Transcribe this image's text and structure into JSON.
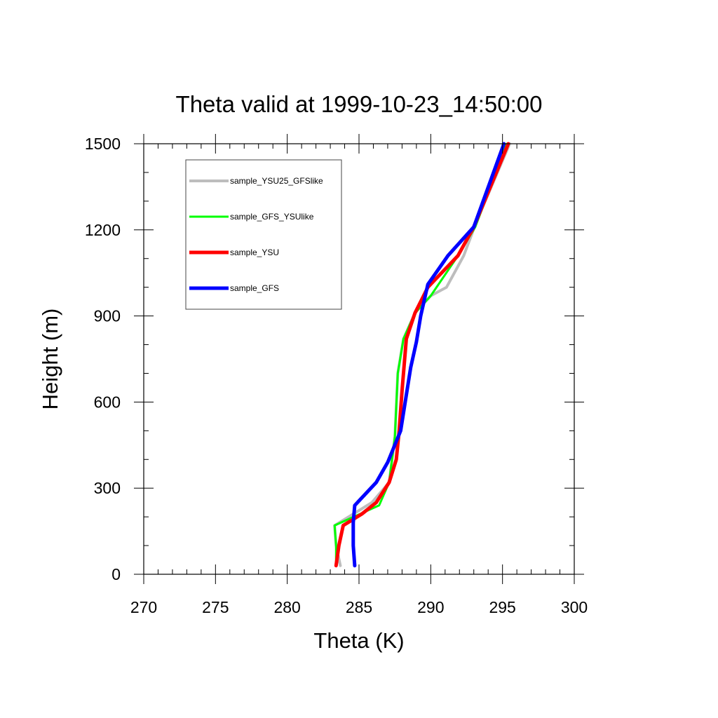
{
  "chart_data": {
    "type": "line",
    "title": "Theta valid at 1999-10-23_14:50:00",
    "xlabel": "Theta (K)",
    "ylabel": "Height (m)",
    "xlim": [
      270,
      300
    ],
    "ylim": [
      0,
      1500
    ],
    "x_ticks": [
      "270",
      "275",
      "280",
      "285",
      "290",
      "295",
      "300"
    ],
    "y_ticks": [
      "0",
      "300",
      "600",
      "900",
      "1200",
      "1500"
    ],
    "grid": false,
    "legend_position": "top-left",
    "series": [
      {
        "name": "sample_YSU25_GFSlike",
        "color": "#bdbdbd",
        "points": [
          [
            283.7,
            30
          ],
          [
            283.4,
            100
          ],
          [
            283.3,
            170
          ],
          [
            285.9,
            250
          ],
          [
            287.1,
            320
          ],
          [
            287.5,
            480
          ],
          [
            287.7,
            700
          ],
          [
            288.1,
            820
          ],
          [
            288.9,
            910
          ],
          [
            290.0,
            970
          ],
          [
            291.1,
            1000
          ],
          [
            292.3,
            1110
          ],
          [
            293.2,
            1230
          ],
          [
            295.5,
            1500
          ]
        ]
      },
      {
        "name": "sample_GFS_YSUlike",
        "color": "#00ff00",
        "points": [
          [
            283.4,
            30
          ],
          [
            283.4,
            100
          ],
          [
            283.3,
            170
          ],
          [
            286.4,
            240
          ],
          [
            287.1,
            320
          ],
          [
            287.5,
            480
          ],
          [
            287.7,
            700
          ],
          [
            288.1,
            820
          ],
          [
            288.9,
            910
          ],
          [
            290.0,
            970
          ],
          [
            291.9,
            1110
          ],
          [
            293.1,
            1210
          ],
          [
            295.3,
            1500
          ]
        ]
      },
      {
        "name": "sample_YSU",
        "color": "#ff0000",
        "points": [
          [
            283.4,
            30
          ],
          [
            283.6,
            100
          ],
          [
            283.9,
            170
          ],
          [
            285.2,
            210
          ],
          [
            286.2,
            250
          ],
          [
            287.1,
            320
          ],
          [
            287.6,
            400
          ],
          [
            287.8,
            500
          ],
          [
            288.0,
            640
          ],
          [
            288.3,
            820
          ],
          [
            288.9,
            910
          ],
          [
            289.8,
            1000
          ],
          [
            291.9,
            1110
          ],
          [
            293.0,
            1210
          ],
          [
            295.4,
            1500
          ]
        ]
      },
      {
        "name": "sample_GFS",
        "color": "#0000ff",
        "points": [
          [
            284.7,
            30
          ],
          [
            284.6,
            100
          ],
          [
            284.6,
            180
          ],
          [
            284.7,
            240
          ],
          [
            286.2,
            320
          ],
          [
            287.0,
            390
          ],
          [
            287.9,
            500
          ],
          [
            288.6,
            720
          ],
          [
            289.0,
            810
          ],
          [
            289.3,
            900
          ],
          [
            289.8,
            1010
          ],
          [
            291.2,
            1110
          ],
          [
            293.0,
            1210
          ],
          [
            295.1,
            1500
          ]
        ]
      }
    ]
  }
}
